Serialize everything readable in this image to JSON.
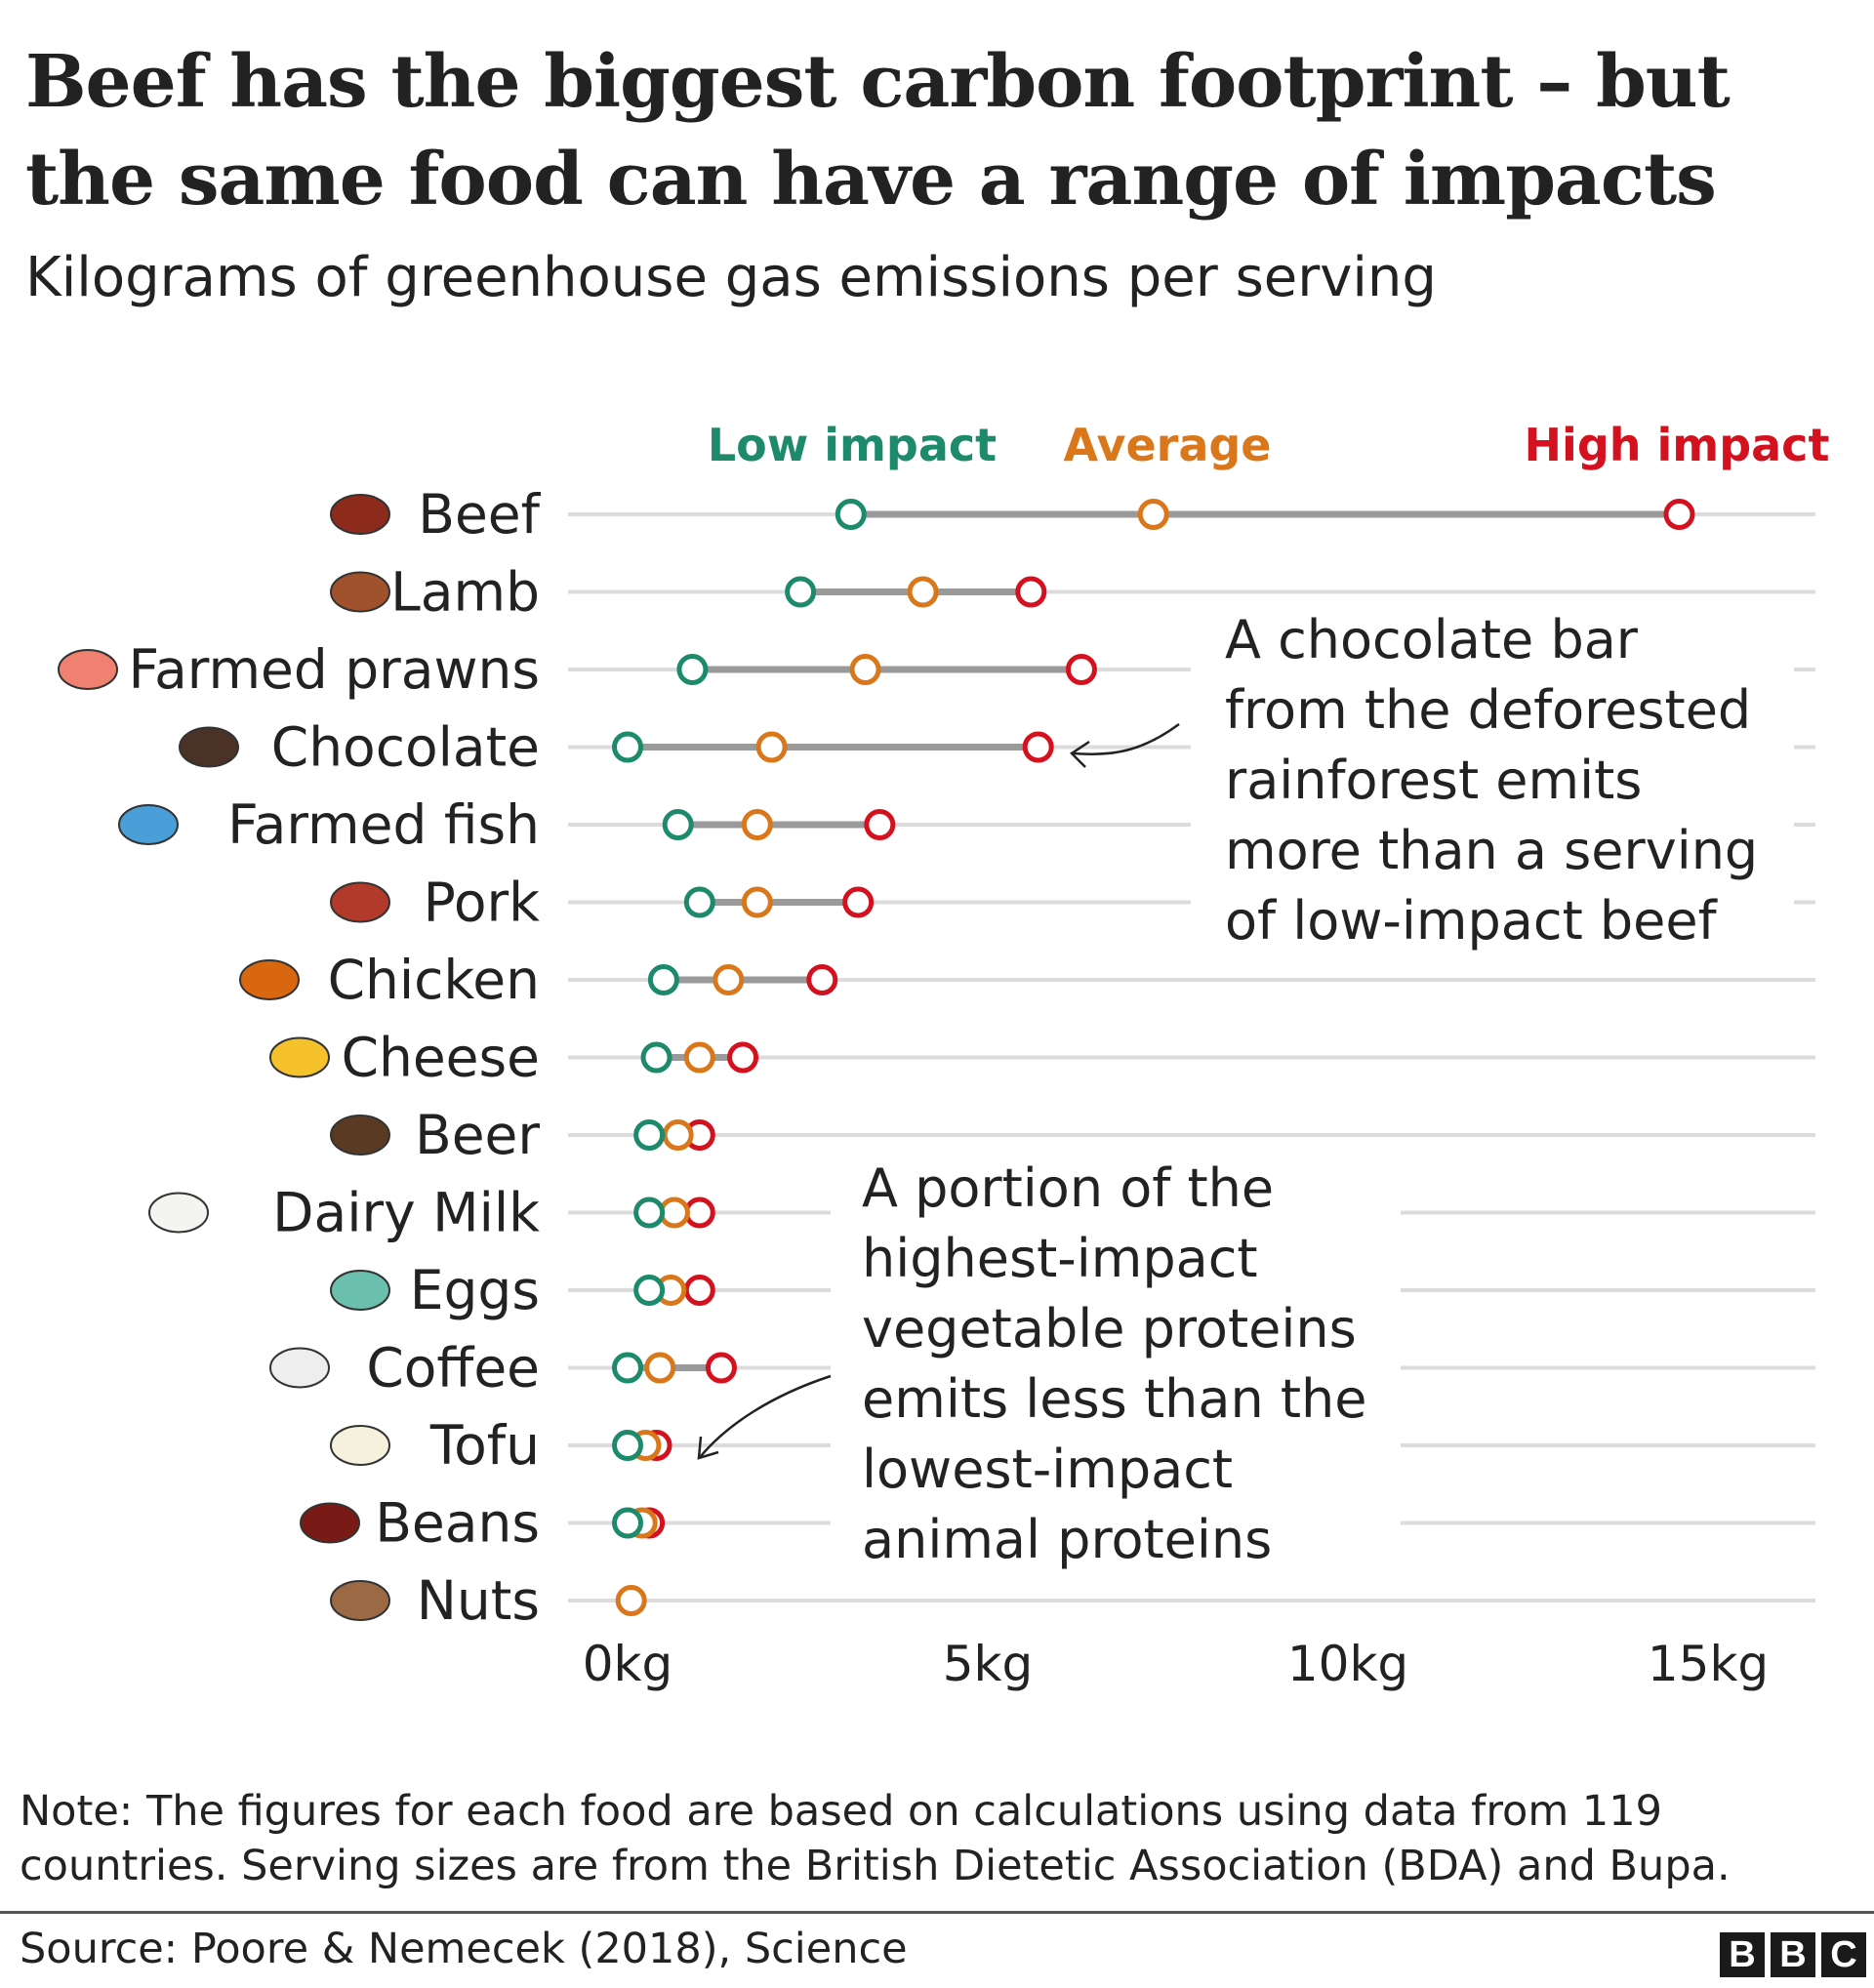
{
  "title_lines": [
    "Beef has the biggest carbon footprint – but",
    "the same food can have a range of impacts"
  ],
  "subtitle": "Kilograms of greenhouse gas emissions per serving",
  "chart_data": {
    "type": "dot-range",
    "unit": "kg",
    "xlim": [
      0,
      17
    ],
    "ticks": [
      0,
      5,
      10,
      15
    ],
    "tick_labels": [
      "0kg",
      "5kg",
      "10kg",
      "15kg"
    ],
    "legend": {
      "low": "Low impact",
      "average": "Average",
      "high": "High impact"
    },
    "colors": {
      "low": "#1c8a6b",
      "average": "#d9771a",
      "high": "#d4121f",
      "range": "#9a9a9a",
      "grid": "#dcdcdc"
    },
    "rows": [
      {
        "food": "Beef",
        "icon": "steak-icon",
        "low": 3.1,
        "average": 7.3,
        "high": 14.6
      },
      {
        "food": "Lamb",
        "icon": "lamb-rack-icon",
        "low": 2.4,
        "average": 4.1,
        "high": 5.6
      },
      {
        "food": "Farmed prawns",
        "icon": "prawn-icon",
        "low": 0.9,
        "average": 3.3,
        "high": 6.3
      },
      {
        "food": "Chocolate",
        "icon": "chocolate-bar-icon",
        "low": 0.0,
        "average": 2.0,
        "high": 5.7
      },
      {
        "food": "Farmed fish",
        "icon": "fish-icon",
        "low": 0.7,
        "average": 1.8,
        "high": 3.5
      },
      {
        "food": "Pork",
        "icon": "ham-icon",
        "low": 1.0,
        "average": 1.8,
        "high": 3.2
      },
      {
        "food": "Chicken",
        "icon": "roast-chicken-icon",
        "low": 0.5,
        "average": 1.4,
        "high": 2.7
      },
      {
        "food": "Cheese",
        "icon": "cheese-icon",
        "low": 0.4,
        "average": 1.0,
        "high": 1.6
      },
      {
        "food": "Beer",
        "icon": "beer-bottle-icon",
        "low": 0.3,
        "average": 0.7,
        "high": 1.0
      },
      {
        "food": "Dairy Milk",
        "icon": "milk-bottle-icon",
        "low": 0.3,
        "average": 0.65,
        "high": 1.0
      },
      {
        "food": "Eggs",
        "icon": "eggs-icon",
        "low": 0.3,
        "average": 0.6,
        "high": 1.0
      },
      {
        "food": "Coffee",
        "icon": "coffee-cup-icon",
        "low": 0.0,
        "average": 0.45,
        "high": 1.3
      },
      {
        "food": "Tofu",
        "icon": "tofu-icon",
        "low": 0.0,
        "average": 0.25,
        "high": 0.4
      },
      {
        "food": "Beans",
        "icon": "bean-icon",
        "low": 0.0,
        "average": 0.2,
        "high": 0.3
      },
      {
        "food": "Nuts",
        "icon": "nuts-icon",
        "low": null,
        "average": 0.05,
        "high": null
      }
    ],
    "annotations": [
      {
        "text": "A chocolate bar\nfrom the deforested\nrainforest emits\nmore than a serving\nof low-impact beef",
        "points_to": "Chocolate"
      },
      {
        "text": "A portion of the\nhighest-impact\nvegetable proteins\nemits less than the\nlowest-impact\nanimal proteins",
        "points_to": "Tofu"
      }
    ]
  },
  "note": "Note: The figures for each food are based on calculations using data from 119 countries. Serving sizes are from the British Dietetic Association (BDA) and Bupa.",
  "source": "Source: Poore & Nemecek (2018), Science",
  "logo": [
    "B",
    "B",
    "C"
  ]
}
